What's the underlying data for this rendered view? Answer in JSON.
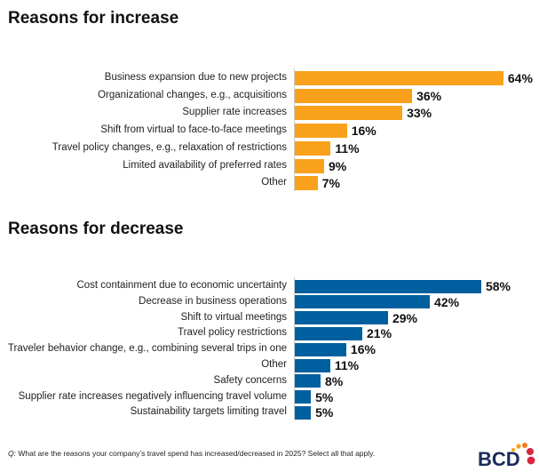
{
  "chart_data": [
    {
      "type": "bar",
      "orientation": "horizontal",
      "title": "Reasons for increase",
      "color": "#F9A11B",
      "categories": [
        "Business expansion due to new projects",
        "Organizational changes, e.g., acquisitions",
        "Supplier rate increases",
        "Shift from virtual to face-to-face meetings",
        "Travel policy changes, e.g., relaxation of restrictions",
        "Limited availability of preferred rates",
        "Other"
      ],
      "values": [
        64,
        36,
        33,
        16,
        11,
        9,
        7
      ],
      "unit": "%"
    },
    {
      "type": "bar",
      "orientation": "horizontal",
      "title": "Reasons for decrease",
      "color": "#005F9E",
      "categories": [
        "Cost containment due to economic uncertainty",
        "Decrease in business operations",
        "Shift to virtual meetings",
        "Travel policy restrictions",
        "Traveler behavior change, e.g., combining several trips in one",
        "Other",
        "Safety concerns",
        "Supplier rate increases negatively influencing travel volume",
        "Sustainability targets limiting travel"
      ],
      "values": [
        58,
        42,
        29,
        21,
        16,
        11,
        8,
        5,
        5
      ],
      "unit": "%"
    }
  ],
  "footnote": {
    "prefix": "Q:",
    "text": " What are the reasons your company’s travel spend has increased/decreased in 2025? Select all that apply."
  },
  "logo": {
    "text": "BCD",
    "colors": [
      "#1B2A5C",
      "#F9A11B",
      "#D7263D"
    ]
  }
}
